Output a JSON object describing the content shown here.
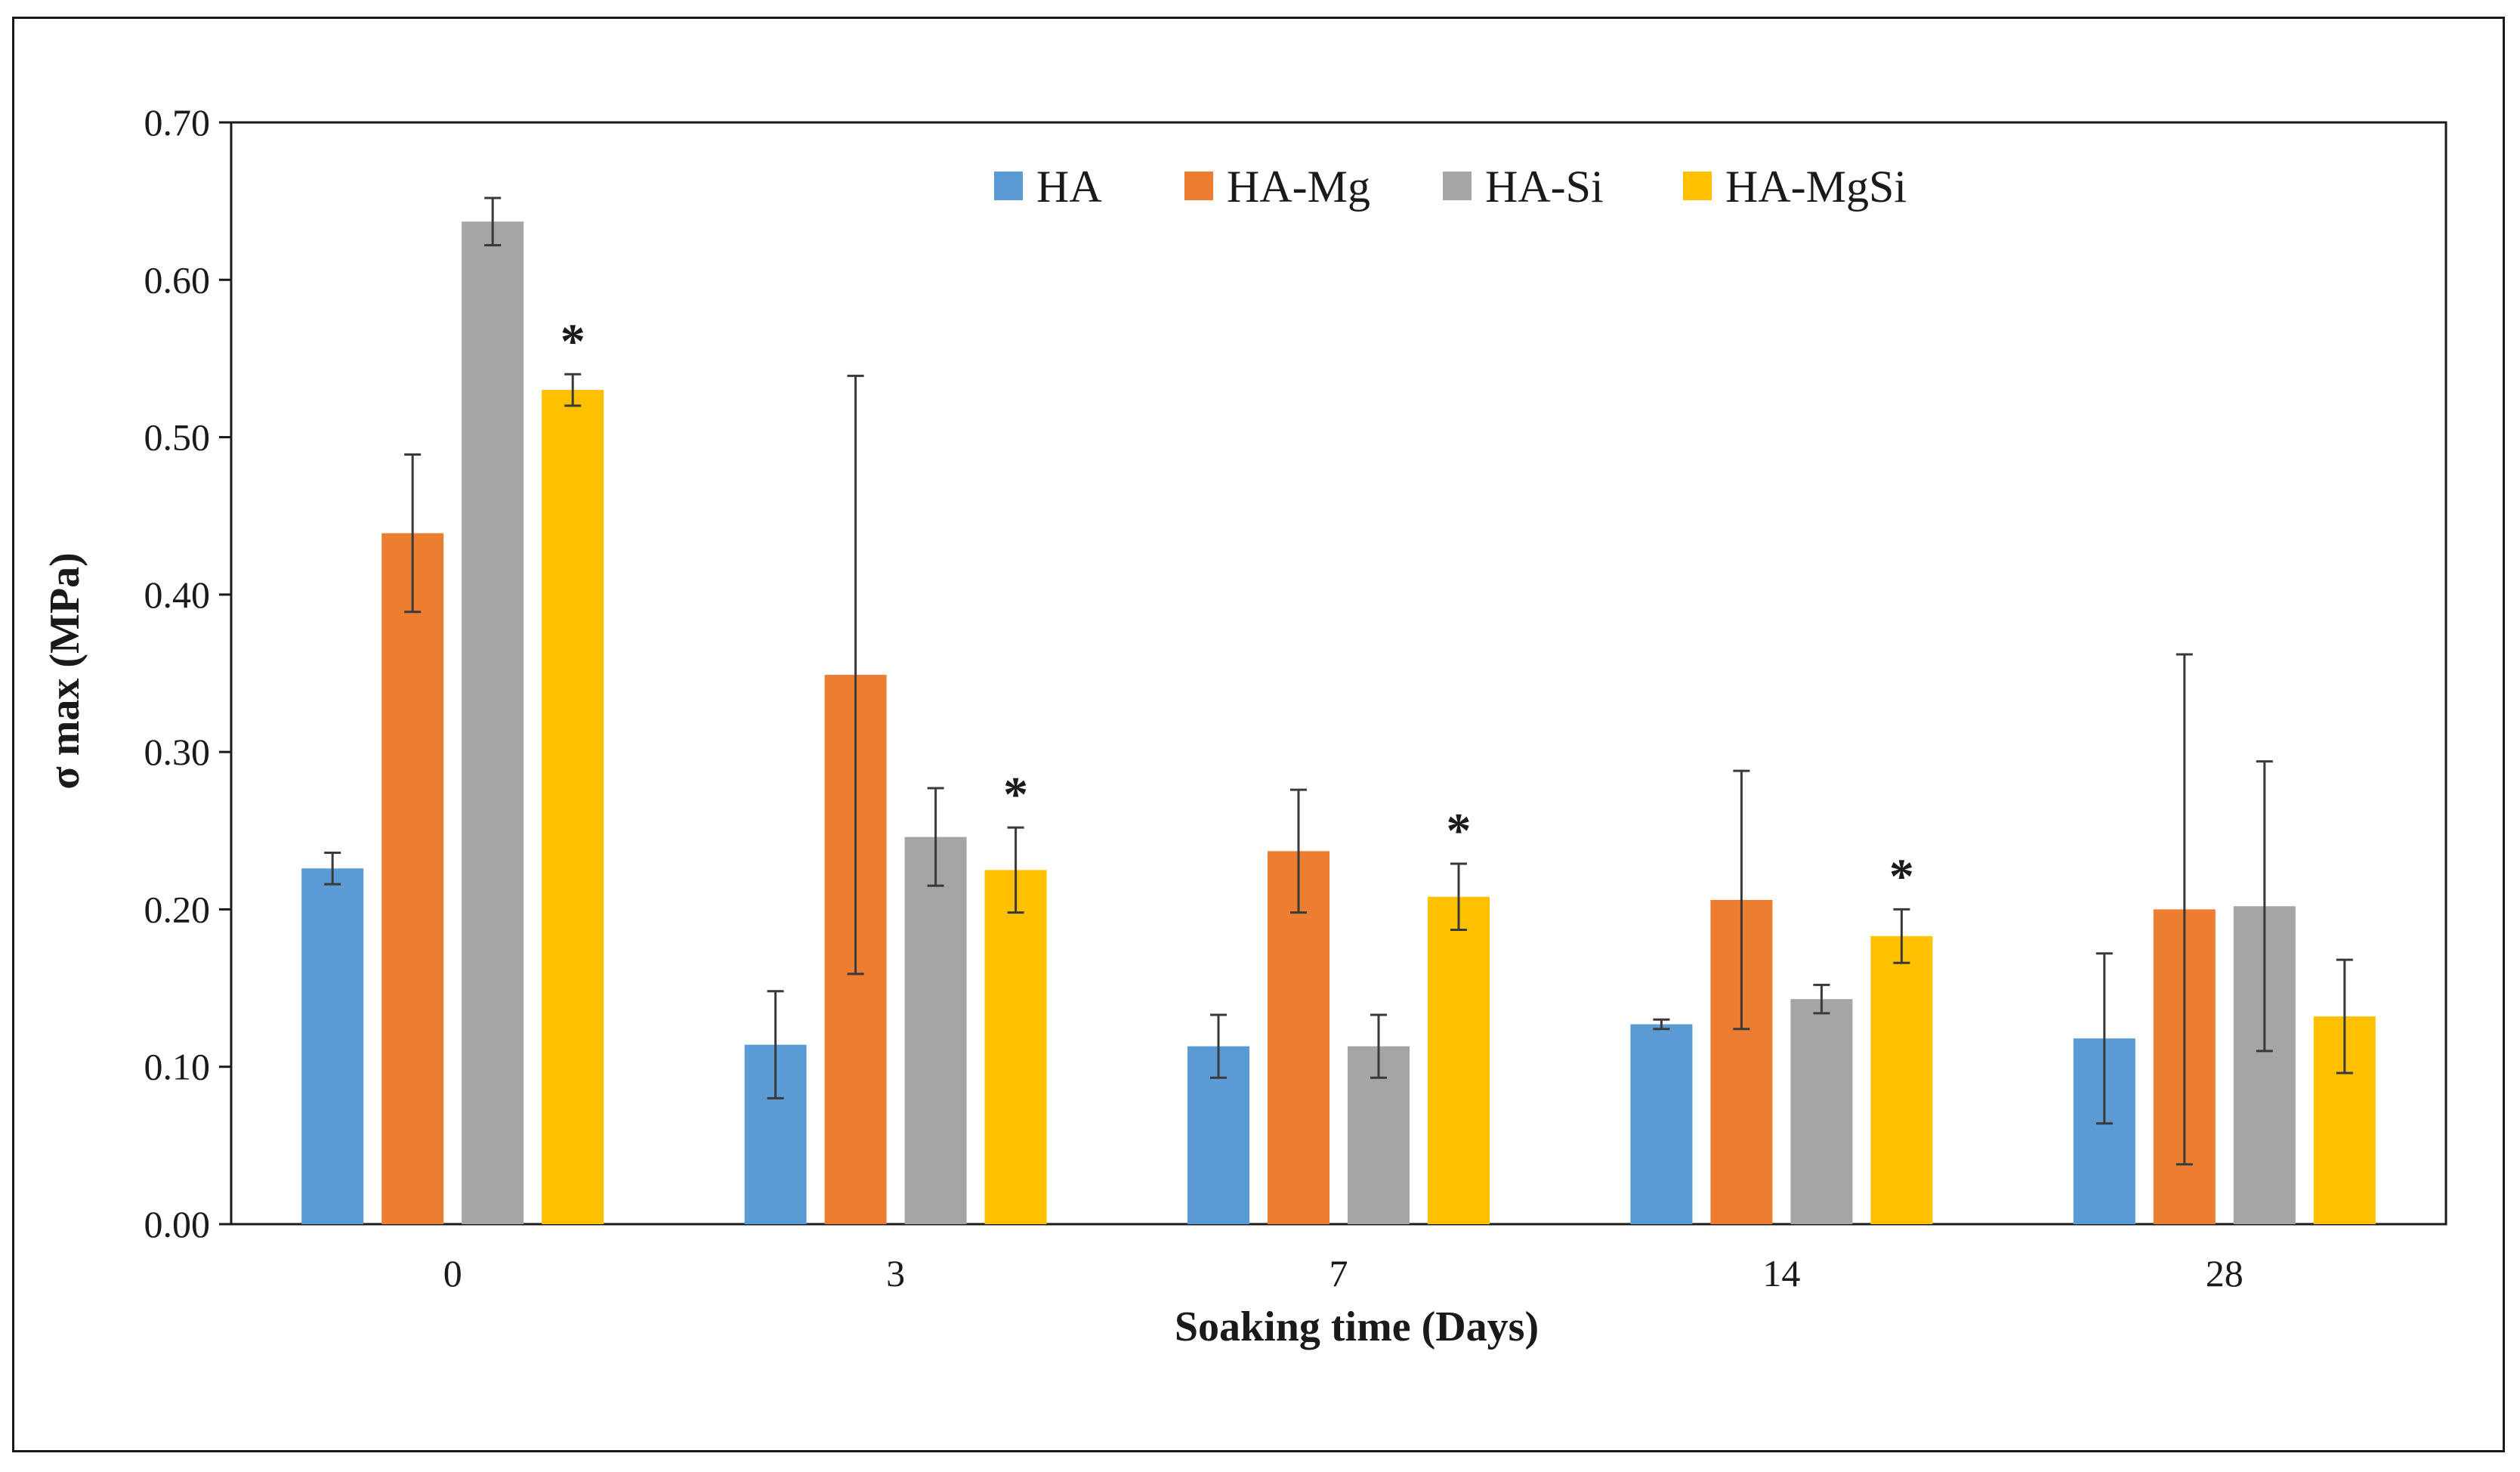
{
  "chart_data": {
    "type": "bar",
    "title": "",
    "xlabel": "Soaking time (Days)",
    "ylabel": "σ max (MPa)",
    "ylim": [
      0,
      0.7
    ],
    "yticks": [
      "0.00",
      "0.10",
      "0.20",
      "0.30",
      "0.40",
      "0.50",
      "0.60",
      "0.70"
    ],
    "grid": false,
    "legend_position": "top-center",
    "categories": [
      "0",
      "3",
      "7",
      "14",
      "28"
    ],
    "series": [
      {
        "name": "HA",
        "color": "#5b9bd5",
        "values": [
          0.226,
          0.114,
          0.113,
          0.127,
          0.118
        ],
        "errors": [
          0.01,
          0.034,
          0.02,
          0.003,
          0.054
        ]
      },
      {
        "name": "HA-Mg",
        "color": "#ed7d31",
        "values": [
          0.439,
          0.349,
          0.237,
          0.206,
          0.2
        ],
        "errors": [
          0.05,
          0.19,
          0.039,
          0.082,
          0.162
        ]
      },
      {
        "name": "HA-Si",
        "color": "#a5a5a5",
        "values": [
          0.637,
          0.246,
          0.113,
          0.143,
          0.202
        ],
        "errors": [
          0.015,
          0.031,
          0.02,
          0.009,
          0.092
        ]
      },
      {
        "name": "HA-MgSi",
        "color": "#ffc000",
        "values": [
          0.53,
          0.225,
          0.208,
          0.183,
          0.132
        ],
        "errors": [
          0.01,
          0.027,
          0.021,
          0.017,
          0.036
        ]
      }
    ],
    "annotations": [
      {
        "text": "*",
        "category": "0",
        "series": "HA-MgSi"
      },
      {
        "text": "*",
        "category": "3",
        "series": "HA-MgSi"
      },
      {
        "text": "*",
        "category": "7",
        "series": "HA-MgSi"
      },
      {
        "text": "*",
        "category": "14",
        "series": "HA-MgSi"
      }
    ]
  }
}
